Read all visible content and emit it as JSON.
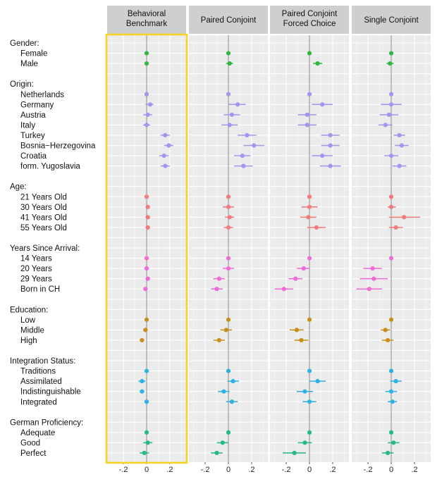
{
  "chart_data": {
    "type": "scatter",
    "subtype": "coefficient-dot-and-whisker",
    "panels": [
      {
        "title_lines": [
          "Behavioral",
          "Benchmark"
        ],
        "highlighted": true
      },
      {
        "title_lines": [
          "Paired Conjoint"
        ],
        "highlighted": false
      },
      {
        "title_lines": [
          "Paired Conjoint",
          "Forced Choice"
        ],
        "highlighted": false
      },
      {
        "title_lines": [
          "Single Conjoint"
        ],
        "highlighted": false
      }
    ],
    "x_ticks": [
      -0.2,
      0,
      0.2
    ],
    "x_tick_labels": [
      "-.2",
      "0",
      ".2"
    ],
    "xlim": [
      -0.34,
      0.34
    ],
    "highlight_color": "#f5d327",
    "groups": [
      {
        "label": "Gender:",
        "color": "#2db83d",
        "rows": [
          {
            "label": "Female",
            "est": [
              0,
              0,
              0,
              0
            ],
            "lo": [
              0,
              0,
              0,
              0
            ],
            "hi": [
              0,
              0,
              0,
              0
            ]
          },
          {
            "label": "Male",
            "est": [
              0.0,
              0.01,
              0.07,
              -0.01
            ],
            "lo": [
              -0.01,
              -0.02,
              0.03,
              -0.04
            ],
            "hi": [
              0.01,
              0.04,
              0.11,
              0.02
            ]
          }
        ]
      },
      {
        "label": "Origin:",
        "color": "#a892f0",
        "rows": [
          {
            "label": "Netherlands",
            "est": [
              0,
              0,
              0,
              0
            ],
            "lo": [
              0,
              0,
              0,
              0
            ],
            "hi": [
              0,
              0,
              0,
              0
            ]
          },
          {
            "label": "Germany",
            "est": [
              0.03,
              0.08,
              0.11,
              0.0
            ],
            "lo": [
              -0.01,
              0.0,
              0.02,
              -0.09
            ],
            "hi": [
              0.06,
              0.15,
              0.2,
              0.09
            ]
          },
          {
            "label": "Austria",
            "est": [
              0.01,
              0.03,
              -0.02,
              -0.02
            ],
            "lo": [
              -0.03,
              -0.04,
              -0.1,
              -0.1
            ],
            "hi": [
              0.05,
              0.1,
              0.06,
              0.06
            ]
          },
          {
            "label": "Italy",
            "est": [
              0.0,
              0.01,
              -0.02,
              -0.05
            ],
            "lo": [
              -0.03,
              -0.06,
              -0.1,
              -0.11
            ],
            "hi": [
              0.03,
              0.08,
              0.06,
              0.01
            ]
          },
          {
            "label": "Turkey",
            "est": [
              0.16,
              0.16,
              0.18,
              0.07
            ],
            "lo": [
              0.12,
              0.08,
              0.1,
              0.02
            ],
            "hi": [
              0.2,
              0.24,
              0.26,
              0.12
            ]
          },
          {
            "label": "Bosnia−Herzegovina",
            "est": [
              0.19,
              0.22,
              0.18,
              0.09
            ],
            "lo": [
              0.15,
              0.13,
              0.1,
              0.03
            ],
            "hi": [
              0.23,
              0.31,
              0.26,
              0.15
            ]
          },
          {
            "label": "Croatia",
            "est": [
              0.15,
              0.12,
              0.11,
              0.0
            ],
            "lo": [
              0.11,
              0.05,
              0.02,
              -0.06
            ],
            "hi": [
              0.19,
              0.19,
              0.2,
              0.06
            ]
          },
          {
            "label": "form. Yugoslavia",
            "est": [
              0.16,
              0.13,
              0.18,
              0.07
            ],
            "lo": [
              0.12,
              0.05,
              0.09,
              0.01
            ],
            "hi": [
              0.2,
              0.21,
              0.27,
              0.13
            ]
          }
        ]
      },
      {
        "label": "Age:",
        "color": "#f37b7b",
        "rows": [
          {
            "label": "21 Years Old",
            "est": [
              0,
              0,
              0,
              0
            ],
            "lo": [
              0,
              0,
              0,
              0
            ],
            "hi": [
              0,
              0,
              0,
              0
            ]
          },
          {
            "label": "30 Years Old",
            "est": [
              0.01,
              0.0,
              0.0,
              0.0
            ],
            "lo": [
              -0.01,
              -0.05,
              -0.07,
              -0.03
            ],
            "hi": [
              0.03,
              0.05,
              0.07,
              0.04
            ]
          },
          {
            "label": "41 Years Old",
            "est": [
              0.01,
              0.01,
              -0.01,
              0.11
            ],
            "lo": [
              -0.01,
              -0.03,
              -0.08,
              -0.02
            ],
            "hi": [
              0.03,
              0.05,
              0.06,
              0.25
            ]
          },
          {
            "label": "55 Years Old",
            "est": [
              0.01,
              0.0,
              0.06,
              0.04
            ],
            "lo": [
              -0.01,
              -0.04,
              -0.02,
              -0.02
            ],
            "hi": [
              0.03,
              0.04,
              0.14,
              0.1
            ]
          }
        ]
      },
      {
        "label": "Years Since Arrival:",
        "color": "#f06bd8",
        "rows": [
          {
            "label": "14 Years",
            "est": [
              0,
              0,
              0,
              0
            ],
            "lo": [
              0,
              0,
              0,
              0
            ],
            "hi": [
              0,
              0,
              0,
              0
            ]
          },
          {
            "label": "20 Years",
            "est": [
              0.0,
              0.0,
              -0.05,
              -0.16
            ],
            "lo": [
              -0.02,
              -0.05,
              -0.11,
              -0.24
            ],
            "hi": [
              0.02,
              0.05,
              0.0,
              -0.08
            ]
          },
          {
            "label": "29 Years",
            "est": [
              0.01,
              -0.08,
              -0.12,
              -0.15
            ],
            "lo": [
              -0.01,
              -0.13,
              -0.18,
              -0.27
            ],
            "hi": [
              0.03,
              -0.03,
              -0.06,
              -0.03
            ]
          },
          {
            "label": "Born in CH",
            "est": [
              -0.01,
              -0.1,
              -0.22,
              -0.19
            ],
            "lo": [
              -0.03,
              -0.15,
              -0.3,
              -0.3
            ],
            "hi": [
              0.01,
              -0.05,
              -0.14,
              -0.08
            ]
          }
        ]
      },
      {
        "label": "Education:",
        "color": "#c98f1c",
        "rows": [
          {
            "label": "Low",
            "est": [
              0,
              0,
              0,
              0
            ],
            "lo": [
              0,
              0,
              0,
              0
            ],
            "hi": [
              0,
              0,
              0,
              0
            ]
          },
          {
            "label": "Middle",
            "est": [
              -0.01,
              -0.02,
              -0.11,
              -0.05
            ],
            "lo": [
              -0.03,
              -0.07,
              -0.17,
              -0.09
            ],
            "hi": [
              0.01,
              0.03,
              -0.05,
              -0.01
            ]
          },
          {
            "label": "High",
            "est": [
              -0.04,
              -0.08,
              -0.07,
              -0.03
            ],
            "lo": [
              -0.06,
              -0.13,
              -0.13,
              -0.08
            ],
            "hi": [
              -0.02,
              -0.03,
              -0.01,
              0.02
            ]
          }
        ]
      },
      {
        "label": "Integration Status:",
        "color": "#2fb2e3",
        "rows": [
          {
            "label": "Traditions",
            "est": [
              0,
              0,
              0,
              0
            ],
            "lo": [
              0,
              0,
              0,
              0
            ],
            "hi": [
              0,
              0,
              0,
              0
            ]
          },
          {
            "label": "Assimilated",
            "est": [
              -0.04,
              0.04,
              0.07,
              0.04
            ],
            "lo": [
              -0.07,
              -0.01,
              0.0,
              -0.01
            ],
            "hi": [
              -0.01,
              0.09,
              0.14,
              0.09
            ]
          },
          {
            "label": "Indistinguishable",
            "est": [
              -0.04,
              -0.04,
              -0.04,
              0.0
            ],
            "lo": [
              -0.06,
              -0.09,
              -0.11,
              -0.05
            ],
            "hi": [
              -0.02,
              0.01,
              0.03,
              0.05
            ]
          },
          {
            "label": "Integrated",
            "est": [
              0.0,
              0.03,
              0.0,
              0.01
            ],
            "lo": [
              -0.02,
              -0.02,
              -0.06,
              -0.03
            ],
            "hi": [
              0.02,
              0.08,
              0.06,
              0.05
            ]
          }
        ]
      },
      {
        "label": "German Proficiency:",
        "color": "#25b88a",
        "rows": [
          {
            "label": "Adequate",
            "est": [
              0,
              0,
              0,
              0
            ],
            "lo": [
              0,
              0,
              0,
              0
            ],
            "hi": [
              0,
              0,
              0,
              0
            ]
          },
          {
            "label": "Good",
            "est": [
              0.01,
              -0.05,
              -0.04,
              0.02
            ],
            "lo": [
              -0.03,
              -0.1,
              -0.1,
              -0.03
            ],
            "hi": [
              0.05,
              0.0,
              0.02,
              0.07
            ]
          },
          {
            "label": "Perfect",
            "est": [
              -0.02,
              -0.1,
              -0.13,
              -0.03
            ],
            "lo": [
              -0.06,
              -0.15,
              -0.23,
              -0.08
            ],
            "hi": [
              0.02,
              -0.05,
              -0.03,
              0.02
            ]
          }
        ]
      }
    ]
  }
}
